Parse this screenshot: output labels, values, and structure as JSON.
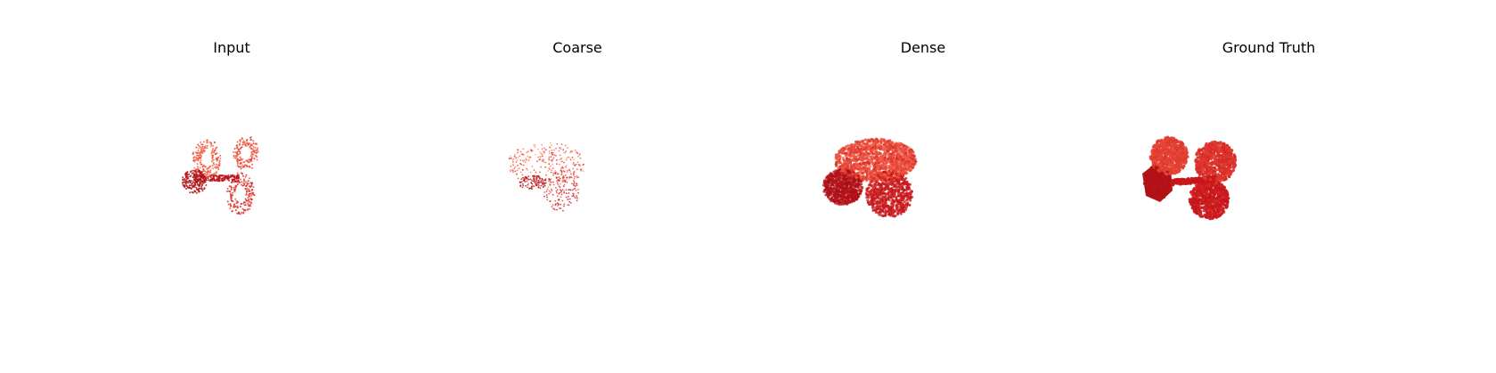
{
  "chart_data": [
    {
      "type": "scatter",
      "title": "Input",
      "axes": "hidden",
      "colormap": [
        "#fcbba1",
        "#fb6a4a",
        "#cb181d",
        "#a50f15"
      ],
      "shape": "dumbbell partial point cloud",
      "sample_seed": 11,
      "point_count": 900
    },
    {
      "type": "scatter",
      "title": "Coarse",
      "axes": "hidden",
      "colormap": [
        "#fcbba1",
        "#fb6a4a",
        "#cb181d",
        "#a50f15"
      ],
      "shape": "sparse coarse completion",
      "sample_seed": 23,
      "point_count": 520
    },
    {
      "type": "scatter",
      "title": "Dense",
      "axes": "hidden",
      "colormap": [
        "#fcbba1",
        "#fb6a4a",
        "#cb181d",
        "#a50f15"
      ],
      "shape": "dense completion blob",
      "sample_seed": 37,
      "point_count": 2600
    },
    {
      "type": "scatter",
      "title": "Ground Truth",
      "axes": "hidden",
      "colormap": [
        "#fcbba1",
        "#fb6a4a",
        "#cb181d",
        "#a50f15"
      ],
      "shape": "dumbbell with hexagonal weight",
      "sample_seed": 51,
      "point_count": 2400
    }
  ]
}
